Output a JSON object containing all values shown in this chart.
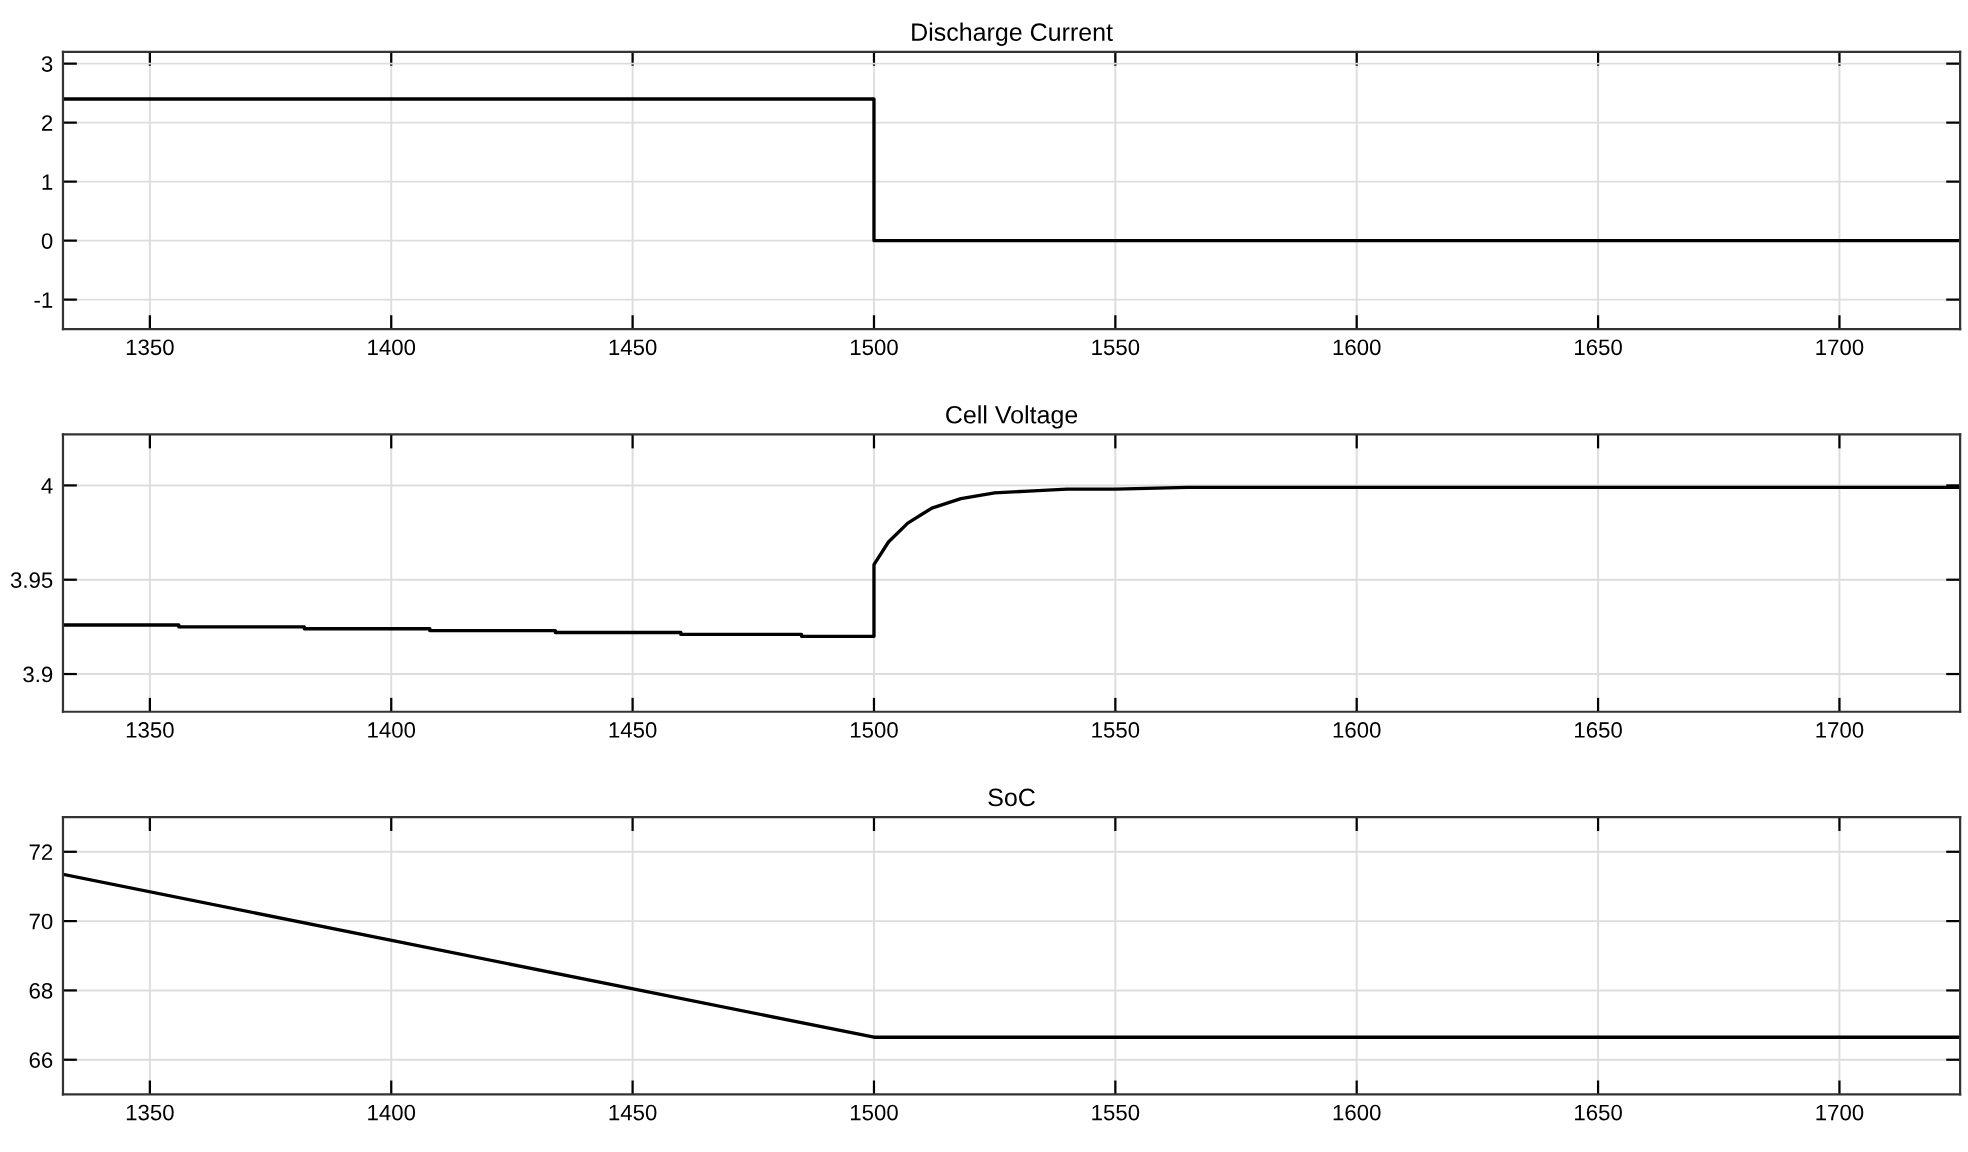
{
  "chart_data": [
    {
      "type": "line",
      "title": "Discharge Current",
      "x": [
        1332,
        1500,
        1500,
        1725
      ],
      "series": [
        {
          "color": "#000000",
          "values": [
            2.4,
            2.4,
            0,
            0
          ]
        }
      ],
      "xlim": [
        1332,
        1725
      ],
      "xticks": [
        1350,
        1400,
        1450,
        1500,
        1550,
        1600,
        1650,
        1700
      ],
      "ylim": [
        -1.5,
        3.2
      ],
      "yticks": [
        -1,
        0,
        1,
        2,
        3
      ],
      "grid": true
    },
    {
      "type": "line",
      "title": "Cell Voltage",
      "x": [
        1332,
        1356,
        1356,
        1382,
        1382,
        1408,
        1408,
        1434,
        1434,
        1460,
        1460,
        1485,
        1485,
        1500,
        1500,
        1503,
        1507,
        1512,
        1518,
        1525,
        1532,
        1540,
        1550,
        1565,
        1600,
        1650,
        1725
      ],
      "series": [
        {
          "color": "#000000",
          "values": [
            3.926,
            3.926,
            3.925,
            3.925,
            3.924,
            3.924,
            3.923,
            3.923,
            3.922,
            3.922,
            3.921,
            3.921,
            3.92,
            3.92,
            3.958,
            3.97,
            3.98,
            3.988,
            3.993,
            3.996,
            3.997,
            3.998,
            3.998,
            3.999,
            3.999,
            3.999,
            3.999
          ]
        }
      ],
      "xlim": [
        1332,
        1725
      ],
      "xticks": [
        1350,
        1400,
        1450,
        1500,
        1550,
        1600,
        1650,
        1700
      ],
      "ylim": [
        3.88,
        4.027
      ],
      "yticks": [
        3.9,
        3.95,
        4
      ],
      "grid": true
    },
    {
      "type": "line",
      "title": "SoC",
      "x": [
        1332,
        1500,
        1725
      ],
      "series": [
        {
          "color": "#000000",
          "values": [
            71.35,
            66.65,
            66.65
          ]
        }
      ],
      "xlim": [
        1332,
        1725
      ],
      "xticks": [
        1350,
        1400,
        1450,
        1500,
        1550,
        1600,
        1650,
        1700
      ],
      "ylim": [
        65,
        73
      ],
      "yticks": [
        66,
        68,
        70,
        72
      ],
      "grid": true
    }
  ]
}
